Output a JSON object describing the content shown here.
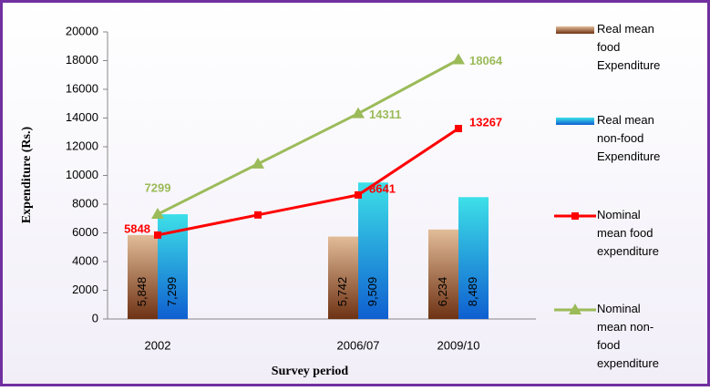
{
  "chart_data": {
    "type": "bar-line",
    "categories": [
      "2002",
      null,
      "2006/07",
      "2009/10"
    ],
    "ylabel": "Expenditure (Rs.)",
    "xlabel": "Survey period",
    "ylim": [
      0,
      20000
    ],
    "yticks": [
      0,
      2000,
      4000,
      6000,
      8000,
      10000,
      12000,
      14000,
      16000,
      18000,
      20000
    ],
    "series": [
      {
        "name": "Real mean food Expenditure",
        "kind": "bar",
        "color": "#8b4a26",
        "values": [
          5848,
          null,
          5742,
          6234
        ],
        "value_labels": [
          "5,848",
          null,
          "5,742",
          "6,234"
        ]
      },
      {
        "name": "Real mean non-food Expenditure",
        "kind": "bar",
        "color": "#1ea0e0",
        "values": [
          7299,
          null,
          9509,
          8489
        ],
        "value_labels": [
          "7,299",
          null,
          "9,509",
          "8,489"
        ]
      },
      {
        "name": "Nominal mean food expenditure",
        "kind": "line",
        "marker": "square",
        "color": "#ff0000",
        "values": [
          5848,
          7250,
          8641,
          13267
        ],
        "value_labels": [
          "5848",
          null,
          "8641",
          "13267"
        ]
      },
      {
        "name": "Nominal mean non-food expenditure",
        "kind": "line",
        "marker": "triangle",
        "color": "#9bbb59",
        "values": [
          7299,
          10805,
          14311,
          18064
        ],
        "value_labels": [
          "7299",
          null,
          "14311",
          "18064"
        ]
      }
    ]
  }
}
